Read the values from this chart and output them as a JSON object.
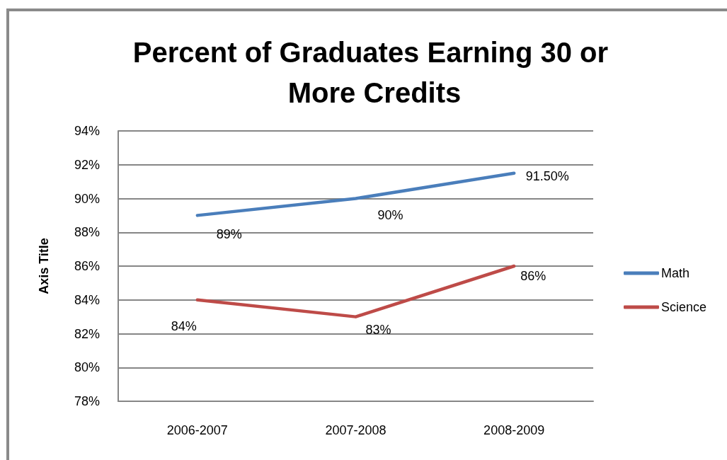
{
  "chart_data": {
    "type": "line",
    "title": "Percent of Graduates Earning 30 or More Credits",
    "ylabel": "Axis Title",
    "categories": [
      "2006-2007",
      "2007-2008",
      "2008-2009"
    ],
    "series": [
      {
        "name": "Math",
        "color": "#4a7ebb",
        "values": [
          89,
          90,
          91.5
        ],
        "value_labels": [
          "89%",
          "90%",
          "91.50%"
        ]
      },
      {
        "name": "Science",
        "color": "#be4b48",
        "values": [
          84,
          83,
          86
        ],
        "value_labels": [
          "84%",
          "83%",
          "86%"
        ]
      }
    ],
    "ylim": [
      78,
      94
    ],
    "yticks": [
      {
        "value": 78,
        "label": "78%"
      },
      {
        "value": 80,
        "label": "80%"
      },
      {
        "value": 82,
        "label": "82%"
      },
      {
        "value": 84,
        "label": "84%"
      },
      {
        "value": 86,
        "label": "86%"
      },
      {
        "value": 88,
        "label": "88%"
      },
      {
        "value": 90,
        "label": "90%"
      },
      {
        "value": 92,
        "label": "92%"
      },
      {
        "value": 94,
        "label": "94%"
      }
    ],
    "grid": "y",
    "legend": "right",
    "marker": "none",
    "line_style": "solid"
  }
}
